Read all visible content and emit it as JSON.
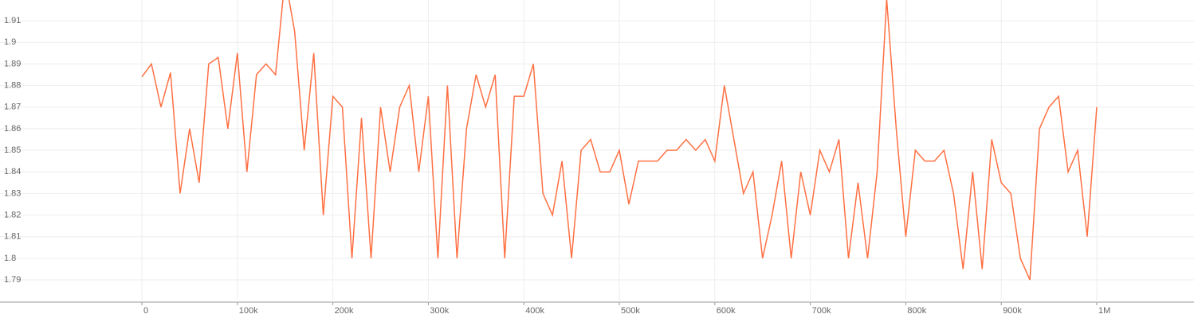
{
  "chart_data": {
    "type": "line",
    "x": [
      0,
      10000,
      20000,
      30000,
      40000,
      50000,
      60000,
      70000,
      80000,
      90000,
      100000,
      110000,
      120000,
      130000,
      140000,
      150000,
      160000,
      170000,
      180000,
      190000,
      200000,
      210000,
      220000,
      230000,
      240000,
      250000,
      260000,
      270000,
      280000,
      290000,
      300000,
      310000,
      320000,
      330000,
      340000,
      350000,
      360000,
      370000,
      380000,
      390000,
      400000,
      410000,
      420000,
      430000,
      440000,
      450000,
      460000,
      470000,
      480000,
      490000,
      500000,
      510000,
      520000,
      530000,
      540000,
      550000,
      560000,
      570000,
      580000,
      590000,
      600000,
      610000,
      620000,
      630000,
      640000,
      650000,
      660000,
      670000,
      680000,
      690000,
      700000,
      710000,
      720000,
      730000,
      740000,
      750000,
      760000,
      770000,
      780000,
      790000,
      800000,
      810000,
      820000,
      830000,
      840000,
      850000,
      860000,
      870000,
      880000,
      890000,
      900000,
      910000,
      920000,
      930000,
      940000,
      950000,
      960000,
      970000,
      980000,
      990000,
      1000000
    ],
    "series": [
      {
        "color": "#ff7043",
        "values": [
          1.884,
          1.89,
          1.87,
          1.886,
          1.83,
          1.86,
          1.835,
          1.89,
          1.893,
          1.86,
          1.895,
          1.84,
          1.885,
          1.89,
          1.885,
          1.93,
          1.905,
          1.85,
          1.895,
          1.82,
          1.875,
          1.87,
          1.8,
          1.865,
          1.8,
          1.87,
          1.84,
          1.87,
          1.88,
          1.84,
          1.875,
          1.8,
          1.88,
          1.8,
          1.86,
          1.885,
          1.87,
          1.885,
          1.8,
          1.875,
          1.875,
          1.89,
          1.83,
          1.82,
          1.845,
          1.8,
          1.85,
          1.855,
          1.84,
          1.84,
          1.85,
          1.825,
          1.845,
          1.845,
          1.845,
          1.85,
          1.85,
          1.855,
          1.85,
          1.855,
          1.845,
          1.88,
          1.855,
          1.83,
          1.84,
          1.8,
          1.82,
          1.845,
          1.8,
          1.84,
          1.82,
          1.85,
          1.84,
          1.855,
          1.8,
          1.835,
          1.8,
          1.84,
          1.92,
          1.86,
          1.81,
          1.85,
          1.845,
          1.845,
          1.85,
          1.83,
          1.795,
          1.84,
          1.795,
          1.855,
          1.835,
          1.83,
          1.8,
          1.79,
          1.86,
          1.87,
          1.875,
          1.84,
          1.85,
          1.81,
          1.87
        ]
      }
    ],
    "xlim": [
      -148580,
      1101836
    ],
    "ylim": [
      1.7797,
      1.9196
    ],
    "xticks": [
      0,
      {
        "value": 100000,
        "label": "100k"
      },
      {
        "value": 200000,
        "label": "200k"
      },
      {
        "value": 300000,
        "label": "300k"
      },
      {
        "value": 400000,
        "label": "400k"
      },
      {
        "value": 500000,
        "label": "500k"
      },
      {
        "value": 600000,
        "label": "600k"
      },
      {
        "value": 700000,
        "label": "700k"
      },
      {
        "value": 800000,
        "label": "800k"
      },
      {
        "value": 900000,
        "label": "900k"
      },
      {
        "value": 1000000,
        "label": "1M"
      }
    ],
    "yticks": [
      1.79,
      1.8,
      1.81,
      1.82,
      1.83,
      1.84,
      1.85,
      1.86,
      1.87,
      1.88,
      1.89,
      1.9,
      1.91
    ],
    "grid": true
  }
}
